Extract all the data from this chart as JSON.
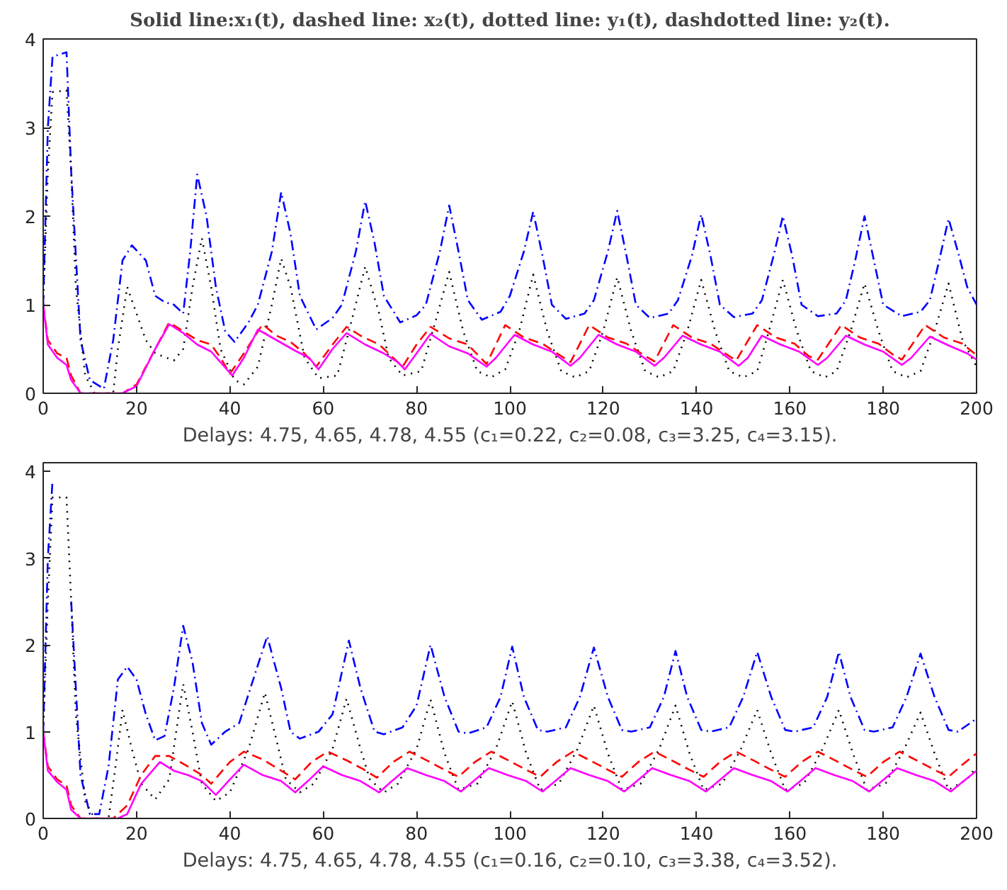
{
  "chart_data": [
    {
      "type": "line",
      "title": "Solid line:x₁(t), dashed line: x₂(t), dotted line: y₁(t), dashdotted line: y₂(t).",
      "xlabel": "Delays: 4.75, 4.65, 4.78, 4.55 (c₁=0.22, c₂=0.08, c₃=3.25, c₄=3.15).",
      "xlim": [
        0,
        200
      ],
      "ylim": [
        0,
        4
      ],
      "xticks": [
        0,
        20,
        40,
        60,
        80,
        100,
        120,
        140,
        160,
        180,
        200
      ],
      "yticks": [
        0,
        1,
        2,
        3,
        4
      ],
      "series": [
        {
          "color": "#0000ff",
          "line_style": "dashdot",
          "x": [
            0,
            1,
            2,
            5,
            6,
            8,
            10,
            13,
            15,
            17,
            19,
            22,
            24,
            26,
            28,
            30,
            31.5,
            33,
            35,
            37,
            39,
            41,
            44,
            46,
            49,
            51,
            53,
            55,
            58.5,
            62,
            64,
            67,
            69,
            71,
            73,
            76.5,
            80,
            82,
            85,
            87,
            89,
            91,
            94,
            98,
            100,
            103,
            105,
            107,
            109,
            112,
            116,
            118,
            121,
            123,
            125,
            127,
            130,
            134,
            136,
            139,
            141,
            143,
            145,
            148,
            152,
            154,
            156.5,
            158.5,
            160.5,
            162.5,
            166,
            170,
            172,
            174,
            176,
            178,
            180,
            184,
            188,
            190,
            192,
            194,
            196,
            198,
            200
          ],
          "values": [
            1.0,
            3.0,
            3.8,
            3.85,
            2.5,
            0.6,
            0.15,
            0.05,
            0.6,
            1.5,
            1.67,
            1.5,
            1.1,
            1.03,
            1.0,
            0.9,
            1.6,
            2.47,
            2.0,
            1.2,
            0.7,
            0.58,
            0.8,
            1.0,
            1.6,
            2.27,
            1.8,
            1.1,
            0.72,
            0.85,
            1.0,
            1.6,
            2.17,
            1.7,
            1.1,
            0.8,
            0.88,
            1.0,
            1.6,
            2.12,
            1.6,
            1.05,
            0.83,
            0.92,
            1.1,
            1.6,
            2.05,
            1.55,
            1.0,
            0.84,
            0.9,
            1.05,
            1.6,
            2.06,
            1.55,
            1.0,
            0.85,
            0.9,
            1.05,
            1.55,
            2.02,
            1.55,
            1.0,
            0.86,
            0.9,
            1.05,
            1.55,
            2.0,
            1.55,
            1.0,
            0.87,
            0.9,
            1.05,
            1.5,
            2.0,
            1.5,
            1.0,
            0.87,
            0.92,
            1.05,
            1.5,
            1.97,
            1.6,
            1.2,
            1.0
          ]
        },
        {
          "color": "#000000",
          "line_style": "dotted",
          "x": [
            0,
            1,
            2,
            5,
            6,
            7,
            9,
            11,
            15,
            16,
            18,
            20,
            22,
            24,
            28,
            30,
            32,
            34,
            36,
            38,
            41,
            43,
            46,
            49,
            51,
            53,
            56,
            59,
            63,
            66,
            69,
            72,
            74,
            77,
            81,
            84,
            87,
            90,
            93,
            96,
            99,
            102,
            105,
            108,
            111,
            114,
            117,
            120,
            123,
            126,
            129,
            132,
            135,
            138,
            141,
            144,
            147,
            150,
            153,
            155.5,
            158.5,
            161.5,
            164.5,
            167.5,
            170,
            173,
            176,
            179,
            182,
            185,
            188,
            191,
            194,
            197,
            200
          ],
          "values": [
            1.0,
            2.5,
            3.4,
            3.42,
            2.5,
            1.2,
            0.2,
            0.0,
            0.0,
            0.5,
            1.2,
            0.9,
            0.6,
            0.45,
            0.37,
            0.5,
            1.2,
            1.75,
            1.2,
            0.5,
            0.15,
            0.1,
            0.3,
            1.0,
            1.52,
            1.2,
            0.4,
            0.17,
            0.2,
            0.8,
            1.43,
            0.9,
            0.4,
            0.2,
            0.25,
            0.8,
            1.37,
            0.7,
            0.25,
            0.18,
            0.27,
            0.7,
            1.34,
            0.7,
            0.25,
            0.18,
            0.25,
            0.7,
            1.31,
            0.7,
            0.25,
            0.18,
            0.25,
            0.7,
            1.28,
            0.7,
            0.25,
            0.18,
            0.25,
            0.7,
            1.28,
            0.7,
            0.25,
            0.18,
            0.25,
            0.7,
            1.24,
            0.7,
            0.25,
            0.18,
            0.25,
            0.7,
            1.24,
            0.6,
            0.3
          ]
        },
        {
          "color": "#ff0000",
          "line_style": "dashed",
          "x": [
            0,
            1,
            3,
            5,
            6,
            8,
            17,
            20,
            24,
            27,
            30,
            33,
            36,
            38,
            40,
            43,
            47,
            50,
            53,
            56,
            58.5,
            62,
            65,
            68,
            72,
            75,
            77,
            80,
            83,
            87,
            91,
            95,
            99,
            103,
            107,
            111,
            113,
            117,
            121,
            125,
            129,
            131,
            135,
            139,
            143,
            147,
            148.5,
            153,
            157,
            161,
            164,
            166,
            171,
            175,
            179,
            182,
            184,
            189,
            193,
            197,
            200
          ],
          "values": [
            1.0,
            0.6,
            0.45,
            0.4,
            0.2,
            0.0,
            0.0,
            0.1,
            0.5,
            0.8,
            0.7,
            0.6,
            0.55,
            0.4,
            0.22,
            0.45,
            0.78,
            0.65,
            0.58,
            0.45,
            0.3,
            0.55,
            0.75,
            0.65,
            0.55,
            0.4,
            0.3,
            0.55,
            0.75,
            0.62,
            0.55,
            0.33,
            0.77,
            0.63,
            0.56,
            0.42,
            0.35,
            0.77,
            0.63,
            0.56,
            0.42,
            0.36,
            0.77,
            0.63,
            0.56,
            0.42,
            0.37,
            0.77,
            0.63,
            0.56,
            0.42,
            0.38,
            0.77,
            0.63,
            0.56,
            0.44,
            0.38,
            0.77,
            0.63,
            0.56,
            0.43
          ]
        },
        {
          "color": "#ff00ff",
          "line_style": "solid",
          "x": [
            0,
            1,
            3,
            5,
            6,
            8,
            17,
            20,
            24,
            27,
            30,
            33,
            36,
            38,
            40.5,
            43,
            46,
            50,
            54,
            57,
            59,
            62,
            65,
            69,
            73,
            76,
            77.5,
            80,
            83,
            87,
            91,
            95,
            97,
            101,
            105,
            109,
            113,
            115,
            119,
            123,
            127,
            131,
            133,
            137,
            141,
            145,
            149,
            151,
            154,
            158,
            162,
            166,
            168,
            172,
            176,
            180,
            184,
            186,
            190,
            194,
            198,
            200
          ],
          "values": [
            1.0,
            0.55,
            0.4,
            0.32,
            0.15,
            0.0,
            0.0,
            0.08,
            0.5,
            0.78,
            0.68,
            0.55,
            0.47,
            0.35,
            0.2,
            0.4,
            0.72,
            0.6,
            0.48,
            0.4,
            0.27,
            0.5,
            0.68,
            0.55,
            0.45,
            0.35,
            0.27,
            0.45,
            0.67,
            0.53,
            0.45,
            0.3,
            0.4,
            0.66,
            0.55,
            0.47,
            0.31,
            0.4,
            0.66,
            0.55,
            0.47,
            0.31,
            0.4,
            0.65,
            0.55,
            0.47,
            0.31,
            0.4,
            0.65,
            0.55,
            0.47,
            0.32,
            0.4,
            0.65,
            0.55,
            0.47,
            0.32,
            0.4,
            0.64,
            0.54,
            0.45,
            0.38
          ]
        }
      ]
    },
    {
      "type": "line",
      "xlabel": "Delays: 4.75, 4.65, 4.78, 4.55 (c₁=0.16, c₂=0.10, c₃=3.38, c₄=3.52).",
      "xlim": [
        0,
        200
      ],
      "ylim": [
        0,
        4.1
      ],
      "xticks": [
        0,
        20,
        40,
        60,
        80,
        100,
        120,
        140,
        160,
        180,
        200
      ],
      "yticks": [
        0,
        1,
        2,
        3,
        4
      ],
      "series": [
        {
          "color": "#0000ff",
          "line_style": "dashdot",
          "x": [
            0,
            1,
            2,
            3,
            5,
            6,
            8,
            10,
            12,
            14,
            16,
            18,
            20,
            22,
            24,
            26,
            28,
            30,
            32,
            34,
            36,
            39,
            42,
            45,
            48,
            51,
            53,
            55,
            59,
            62,
            65.5,
            68,
            71,
            73,
            77,
            80,
            83,
            86,
            89,
            91,
            95,
            98,
            100.5,
            103,
            106,
            108,
            112,
            115,
            118,
            121,
            124,
            126,
            130,
            133,
            135.5,
            138,
            141,
            143,
            147,
            150,
            153,
            156,
            159,
            161,
            165,
            168,
            170.5,
            173,
            176,
            178,
            182,
            185,
            188,
            191,
            194,
            196,
            200
          ],
          "values": [
            1.0,
            3.0,
            3.9,
            null,
            null,
            2.5,
            0.5,
            0.05,
            0.05,
            0.6,
            1.6,
            1.75,
            1.6,
            1.2,
            0.9,
            0.95,
            1.5,
            2.22,
            1.8,
            1.1,
            0.85,
            1.0,
            1.1,
            1.6,
            2.1,
            1.5,
            1.0,
            0.92,
            1.0,
            1.2,
            2.05,
            1.5,
            1.0,
            0.97,
            1.05,
            1.3,
            2.0,
            1.4,
            1.0,
            0.98,
            1.05,
            1.4,
            1.98,
            1.4,
            1.02,
            1.0,
            1.05,
            1.4,
            1.97,
            1.4,
            1.02,
            1.0,
            1.05,
            1.4,
            1.93,
            1.4,
            1.02,
            1.0,
            1.05,
            1.4,
            1.92,
            1.4,
            1.02,
            1.0,
            1.05,
            1.4,
            1.92,
            1.4,
            1.02,
            1.0,
            1.05,
            1.4,
            1.9,
            1.4,
            1.02,
            1.0,
            1.15
          ]
        },
        {
          "color": "#000000",
          "line_style": "dotted",
          "x": [
            0,
            1,
            2,
            5,
            6,
            7,
            9,
            11,
            14,
            15.5,
            17,
            19,
            21,
            24,
            27,
            30,
            32,
            34,
            37,
            40,
            44,
            47.5,
            50,
            52,
            55,
            58,
            62,
            65,
            68,
            70,
            73,
            76,
            80,
            83,
            86,
            89,
            93,
            97,
            100.5,
            103.5,
            106.5,
            110.5,
            114.5,
            118,
            121,
            124,
            128,
            132,
            135.5,
            138.5,
            141.5,
            145.5,
            149.5,
            153,
            156,
            159,
            163,
            167,
            170.5,
            173.5,
            176.5,
            180.5,
            184.5,
            188,
            191,
            194,
            198,
            200
          ],
          "values": [
            1.0,
            2.5,
            3.7,
            3.7,
            2.5,
            1.2,
            0.2,
            0.0,
            0.0,
            0.6,
            1.25,
            0.8,
            0.4,
            0.22,
            0.45,
            1.55,
            1.0,
            0.4,
            0.2,
            0.3,
            0.8,
            1.45,
            0.9,
            0.45,
            0.3,
            0.4,
            0.8,
            1.38,
            0.8,
            0.45,
            0.3,
            0.4,
            0.8,
            1.37,
            0.75,
            0.33,
            0.4,
            0.8,
            1.35,
            0.75,
            0.33,
            0.4,
            0.8,
            1.3,
            0.75,
            0.33,
            0.4,
            0.8,
            1.3,
            0.75,
            0.33,
            0.4,
            0.8,
            1.25,
            0.75,
            0.33,
            0.4,
            0.8,
            1.25,
            0.75,
            0.33,
            0.4,
            0.8,
            1.22,
            0.75,
            0.33,
            0.45,
            0.6
          ]
        },
        {
          "color": "#ff0000",
          "line_style": "dashed",
          "x": [
            0,
            1,
            3,
            5,
            6,
            8,
            15,
            18,
            21,
            24,
            27,
            31,
            34,
            36,
            40,
            43,
            47,
            51,
            54,
            57.5,
            61,
            65,
            68.5,
            71.5,
            75,
            78.5,
            82.5,
            86,
            89,
            92.5,
            96,
            100,
            103.5,
            106.5,
            110,
            113.5,
            117.5,
            121,
            124,
            127.5,
            131,
            135,
            138.5,
            141.5,
            145,
            148.5,
            152.5,
            156,
            159,
            162.5,
            166,
            170,
            173.5,
            176.5,
            180,
            183.5,
            187.5,
            191,
            194,
            197,
            200
          ],
          "values": [
            1.0,
            0.6,
            0.45,
            0.38,
            0.15,
            0.0,
            0.0,
            0.15,
            0.5,
            0.72,
            0.72,
            0.6,
            0.5,
            0.4,
            0.65,
            0.77,
            0.68,
            0.55,
            0.45,
            0.65,
            0.77,
            0.67,
            0.57,
            0.47,
            0.65,
            0.77,
            0.66,
            0.56,
            0.48,
            0.65,
            0.77,
            0.66,
            0.56,
            0.48,
            0.65,
            0.77,
            0.66,
            0.56,
            0.48,
            0.65,
            0.77,
            0.66,
            0.56,
            0.48,
            0.65,
            0.77,
            0.66,
            0.56,
            0.48,
            0.65,
            0.77,
            0.66,
            0.56,
            0.48,
            0.65,
            0.77,
            0.66,
            0.56,
            0.48,
            0.62,
            0.75
          ]
        },
        {
          "color": "#ff00ff",
          "line_style": "solid",
          "x": [
            0,
            1,
            3,
            5,
            6,
            8,
            16,
            18,
            21,
            25,
            28,
            31,
            34,
            37,
            39.5,
            43,
            47,
            51,
            54,
            56.5,
            60,
            64,
            68,
            72,
            74.5,
            78,
            82,
            86,
            89.5,
            92,
            95.5,
            99.5,
            103.5,
            107,
            109.5,
            113,
            117,
            121,
            124.5,
            127,
            130.5,
            134.5,
            138.5,
            142,
            144.5,
            148,
            152,
            156,
            159.5,
            162,
            165.5,
            169.5,
            173.5,
            177,
            179.5,
            183,
            187,
            191,
            194.5,
            197,
            200
          ],
          "values": [
            1.0,
            0.55,
            0.42,
            0.33,
            0.1,
            0.0,
            0.0,
            0.05,
            0.4,
            0.65,
            0.55,
            0.5,
            0.43,
            0.27,
            0.42,
            0.62,
            0.5,
            0.43,
            0.3,
            0.42,
            0.6,
            0.5,
            0.43,
            0.3,
            0.42,
            0.58,
            0.5,
            0.43,
            0.31,
            0.42,
            0.58,
            0.5,
            0.43,
            0.31,
            0.42,
            0.58,
            0.5,
            0.43,
            0.31,
            0.42,
            0.58,
            0.5,
            0.43,
            0.31,
            0.42,
            0.58,
            0.5,
            0.43,
            0.31,
            0.42,
            0.58,
            0.5,
            0.43,
            0.31,
            0.42,
            0.58,
            0.5,
            0.43,
            0.31,
            0.42,
            0.55
          ]
        }
      ]
    }
  ]
}
